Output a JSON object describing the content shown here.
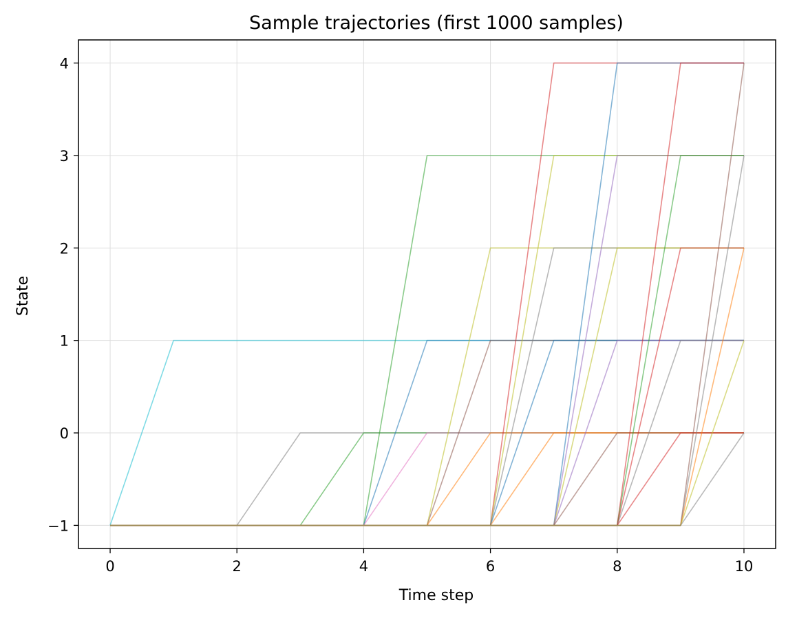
{
  "chart_data": {
    "type": "line",
    "title": "Sample trajectories (first 1000 samples)",
    "xlabel": "Time step",
    "ylabel": "State",
    "xlim": [
      -0.5,
      10.5
    ],
    "ylim": [
      -1.25,
      4.25
    ],
    "xticks": [
      0,
      2,
      4,
      6,
      8,
      10
    ],
    "yticks": [
      -1,
      0,
      1,
      2,
      3,
      4
    ],
    "xtick_labels": [
      "0",
      "2",
      "4",
      "6",
      "8",
      "10"
    ],
    "ytick_labels": [
      "−1",
      "0",
      "1",
      "2",
      "3",
      "4"
    ],
    "grid": true,
    "legend": false,
    "x": [
      0,
      1,
      2,
      3,
      4,
      5,
      6,
      7,
      8,
      9,
      10
    ],
    "series": [
      {
        "color": "#17becf",
        "values": [
          -1,
          1,
          1,
          1,
          1,
          1,
          1,
          1,
          1,
          1,
          1
        ]
      },
      {
        "color": "#7f7f7f",
        "values": [
          -1,
          -1,
          -1,
          0,
          0,
          0,
          0,
          0,
          0,
          0,
          0
        ]
      },
      {
        "color": "#2ca02c",
        "values": [
          -1,
          -1,
          -1,
          -1,
          0,
          0,
          0,
          0,
          0,
          0,
          0
        ]
      },
      {
        "color": "#2ca02c",
        "values": [
          -1,
          -1,
          -1,
          -1,
          -1,
          3,
          3,
          3,
          3,
          3,
          3
        ]
      },
      {
        "color": "#1f77b4",
        "values": [
          -1,
          -1,
          -1,
          -1,
          -1,
          1,
          1,
          1,
          1,
          1,
          1
        ]
      },
      {
        "color": "#e377c2",
        "values": [
          -1,
          -1,
          -1,
          -1,
          -1,
          0,
          0,
          0,
          0,
          0,
          0
        ]
      },
      {
        "color": "#bcbd22",
        "values": [
          -1,
          -1,
          -1,
          -1,
          -1,
          -1,
          2,
          2,
          2,
          2,
          2
        ]
      },
      {
        "color": "#8c564b",
        "values": [
          -1,
          -1,
          -1,
          -1,
          -1,
          -1,
          1,
          1,
          1,
          1,
          1
        ]
      },
      {
        "color": "#ff7f0e",
        "values": [
          -1,
          -1,
          -1,
          -1,
          -1,
          -1,
          0,
          0,
          0,
          0,
          0
        ]
      },
      {
        "color": "#d62728",
        "values": [
          -1,
          -1,
          -1,
          -1,
          -1,
          -1,
          -1,
          4,
          4,
          4,
          4
        ]
      },
      {
        "color": "#bcbd22",
        "values": [
          -1,
          -1,
          -1,
          -1,
          -1,
          -1,
          -1,
          3,
          3,
          3,
          3
        ]
      },
      {
        "color": "#7f7f7f",
        "values": [
          -1,
          -1,
          -1,
          -1,
          -1,
          -1,
          -1,
          2,
          2,
          2,
          2
        ]
      },
      {
        "color": "#1f77b4",
        "values": [
          -1,
          -1,
          -1,
          -1,
          -1,
          -1,
          -1,
          1,
          1,
          1,
          1
        ]
      },
      {
        "color": "#ff7f0e",
        "values": [
          -1,
          -1,
          -1,
          -1,
          -1,
          -1,
          -1,
          0,
          0,
          0,
          0
        ]
      },
      {
        "color": "#1f77b4",
        "values": [
          -1,
          -1,
          -1,
          -1,
          -1,
          -1,
          -1,
          -1,
          4,
          4,
          4
        ]
      },
      {
        "color": "#9467bd",
        "values": [
          -1,
          -1,
          -1,
          -1,
          -1,
          -1,
          -1,
          -1,
          3,
          3,
          3
        ]
      },
      {
        "color": "#bcbd22",
        "values": [
          -1,
          -1,
          -1,
          -1,
          -1,
          -1,
          -1,
          -1,
          2,
          2,
          2
        ]
      },
      {
        "color": "#9467bd",
        "values": [
          -1,
          -1,
          -1,
          -1,
          -1,
          -1,
          -1,
          -1,
          1,
          1,
          1
        ]
      },
      {
        "color": "#8c564b",
        "values": [
          -1,
          -1,
          -1,
          -1,
          -1,
          -1,
          -1,
          -1,
          0,
          0,
          0
        ]
      },
      {
        "color": "#d62728",
        "values": [
          -1,
          -1,
          -1,
          -1,
          -1,
          -1,
          -1,
          -1,
          -1,
          4,
          4
        ]
      },
      {
        "color": "#2ca02c",
        "values": [
          -1,
          -1,
          -1,
          -1,
          -1,
          -1,
          -1,
          -1,
          -1,
          3,
          3
        ]
      },
      {
        "color": "#d62728",
        "values": [
          -1,
          -1,
          -1,
          -1,
          -1,
          -1,
          -1,
          -1,
          -1,
          2,
          2
        ]
      },
      {
        "color": "#7f7f7f",
        "values": [
          -1,
          -1,
          -1,
          -1,
          -1,
          -1,
          -1,
          -1,
          -1,
          1,
          1
        ]
      },
      {
        "color": "#d62728",
        "values": [
          -1,
          -1,
          -1,
          -1,
          -1,
          -1,
          -1,
          -1,
          -1,
          0,
          0
        ]
      },
      {
        "color": "#8c564b",
        "values": [
          -1,
          -1,
          -1,
          -1,
          -1,
          -1,
          -1,
          -1,
          -1,
          -1,
          4
        ]
      },
      {
        "color": "#7f7f7f",
        "values": [
          -1,
          -1,
          -1,
          -1,
          -1,
          -1,
          -1,
          -1,
          -1,
          -1,
          3
        ]
      },
      {
        "color": "#ff7f0e",
        "values": [
          -1,
          -1,
          -1,
          -1,
          -1,
          -1,
          -1,
          -1,
          -1,
          -1,
          2
        ]
      },
      {
        "color": "#bcbd22",
        "values": [
          -1,
          -1,
          -1,
          -1,
          -1,
          -1,
          -1,
          -1,
          -1,
          -1,
          1
        ]
      },
      {
        "color": "#7f7f7f",
        "values": [
          -1,
          -1,
          -1,
          -1,
          -1,
          -1,
          -1,
          -1,
          -1,
          -1,
          0
        ]
      }
    ]
  }
}
